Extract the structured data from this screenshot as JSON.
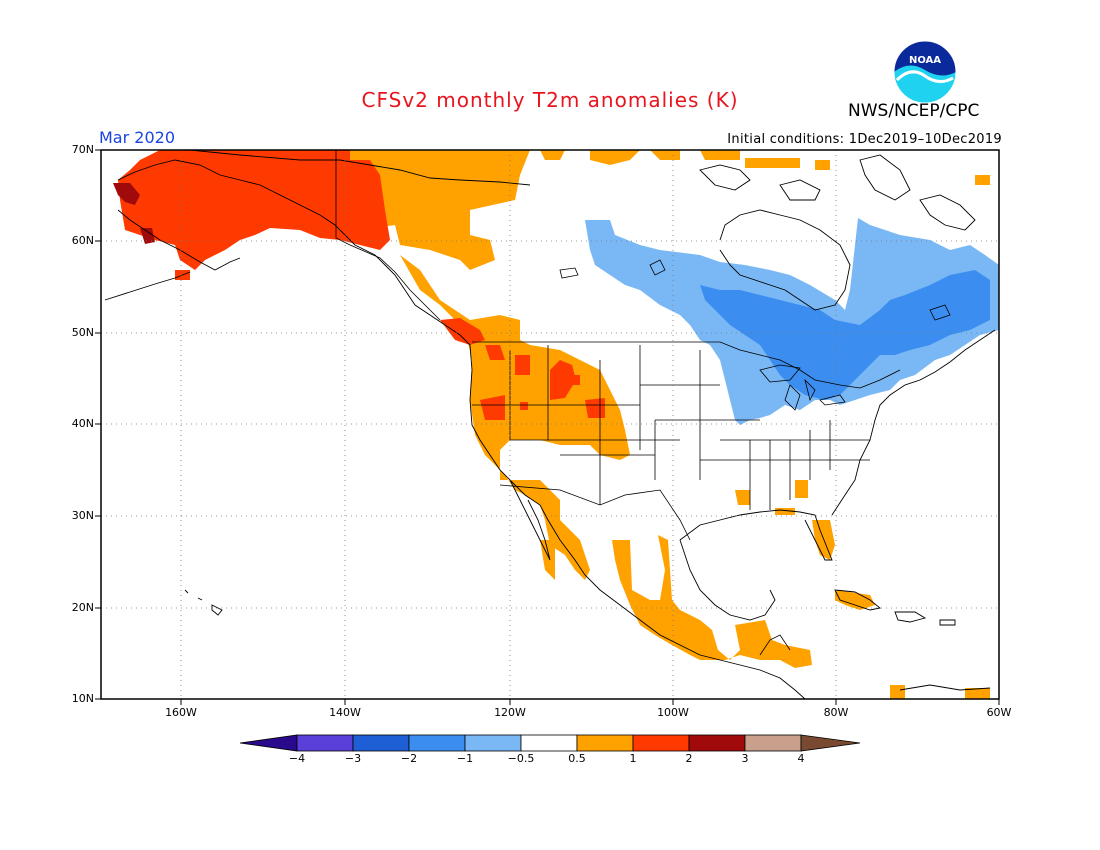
{
  "title": "CFSv2 monthly T2m anomalies (K)",
  "month": "Mar 2020",
  "initial_conditions": "Initial conditions: 1Dec2019–10Dec2019",
  "agency": "NWS/NCEP/CPC",
  "logo_text": "NOAA",
  "map": {
    "lat_labels": [
      "70N",
      "60N",
      "50N",
      "40N",
      "30N",
      "20N",
      "10N"
    ],
    "lon_labels": [
      "160W",
      "140W",
      "120W",
      "100W",
      "80W",
      "60W"
    ]
  },
  "colorbar": {
    "tick_labels": [
      "−4",
      "−3",
      "−2",
      "−1",
      "−0.5",
      "0.5",
      "1",
      "2",
      "3",
      "4"
    ],
    "colors": [
      "#2a0a8c",
      "#5a3fd8",
      "#1f5fd6",
      "#3b8ef0",
      "#7ab8f5",
      "#ffffff",
      "#ffa200",
      "#ff3a00",
      "#a10a0a",
      "#c8a08c",
      "#7a4a30"
    ]
  },
  "legend_colors": {
    "warm_05_1": "#ffa200",
    "warm_1_2": "#ff3a00",
    "warm_2_3": "#a10a0a",
    "cool_m05_m1": "#7ab8f5",
    "cool_m1_m2": "#3b8ef0",
    "title_color": "#e8141e",
    "month_color": "#1a45e0"
  }
}
